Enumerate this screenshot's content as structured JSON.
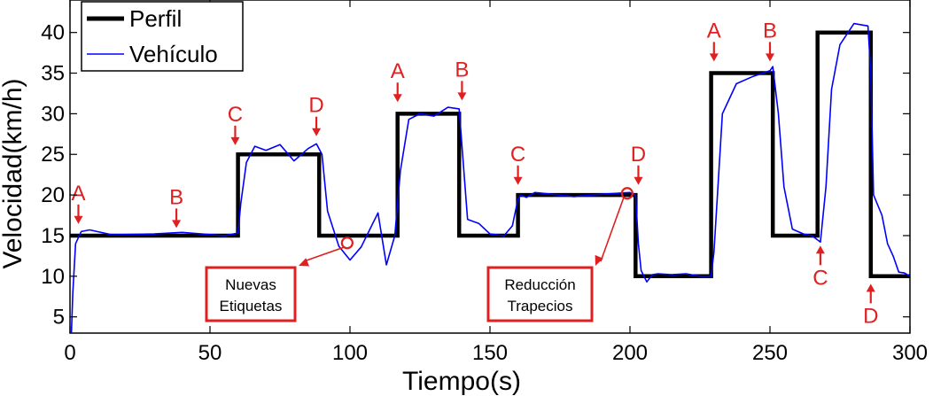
{
  "chart_data": {
    "type": "line",
    "xlabel": "Tiempo(s)",
    "ylabel": "Velocidad(km/h)",
    "xlim": [
      0,
      300
    ],
    "ylim": [
      3,
      44
    ],
    "xticks": [
      0,
      50,
      100,
      150,
      200,
      250,
      300
    ],
    "yticks": [
      5,
      10,
      15,
      20,
      25,
      30,
      35,
      40
    ],
    "grid": false,
    "legend_position": "top-left",
    "series": [
      {
        "name": "Perfil",
        "color": "#000000",
        "style": "step",
        "x": [
          0,
          60,
          60,
          89,
          89,
          117,
          117,
          139,
          139,
          160,
          160,
          202,
          202,
          229,
          229,
          251,
          251,
          267,
          267,
          286,
          286,
          300
        ],
        "y": [
          15,
          15,
          25,
          25,
          15,
          15,
          30,
          30,
          15,
          15,
          20,
          20,
          10,
          10,
          35,
          35,
          15,
          15,
          40,
          40,
          10,
          10
        ]
      },
      {
        "name": "Vehículo",
        "color": "#0000ff",
        "style": "line",
        "x": [
          0.5,
          1,
          2,
          4,
          7,
          15,
          30,
          40,
          55,
          60,
          61,
          63,
          66,
          70,
          75,
          80,
          85,
          88,
          90,
          92,
          96,
          100,
          104,
          110,
          113,
          116,
          118,
          121,
          125,
          130,
          135,
          139,
          140,
          142,
          146,
          150,
          155,
          158,
          160,
          161,
          163,
          166,
          172,
          180,
          190,
          200,
          202,
          203,
          204,
          206,
          208,
          210,
          215,
          220,
          225,
          229,
          230,
          233,
          238,
          244,
          250,
          251,
          253,
          255,
          258,
          262,
          265,
          268,
          270,
          272,
          275,
          280,
          285,
          286,
          287,
          290,
          292,
          294,
          296,
          298,
          300
        ],
        "y": [
          3,
          8,
          14,
          15.5,
          15.7,
          15.1,
          15.2,
          15.4,
          15,
          15.3,
          19,
          24,
          26,
          25.5,
          26.2,
          24.2,
          25.7,
          26.3,
          25,
          18,
          13.7,
          12,
          13.6,
          17.8,
          11.4,
          15,
          23,
          29.3,
          30,
          29.7,
          30.8,
          30.6,
          26,
          17,
          16.5,
          15.2,
          15,
          16.2,
          19.5,
          20,
          19.7,
          20.3,
          20.1,
          19.8,
          20.1,
          20.3,
          20,
          14,
          10.7,
          9.3,
          10.2,
          10.3,
          10.2,
          10.3,
          10,
          10,
          13,
          30,
          33.7,
          34.6,
          35.3,
          35.8,
          30,
          21,
          15.8,
          15.2,
          15,
          14.2,
          21,
          33,
          38.5,
          41.1,
          40.8,
          35,
          20,
          17.5,
          14,
          12.5,
          10.5,
          10.4,
          10
        ]
      }
    ],
    "markers": [
      {
        "label": "A",
        "x": 3,
        "y": 16,
        "dir": "down"
      },
      {
        "label": "B",
        "x": 38,
        "y": 15.5,
        "dir": "down"
      },
      {
        "label": "C",
        "x": 59,
        "y": 25.7,
        "dir": "down"
      },
      {
        "label": "D",
        "x": 88,
        "y": 26.8,
        "dir": "down"
      },
      {
        "label": "A",
        "x": 117,
        "y": 31,
        "dir": "down"
      },
      {
        "label": "B",
        "x": 140,
        "y": 31.2,
        "dir": "down"
      },
      {
        "label": "C",
        "x": 160,
        "y": 20.8,
        "dir": "down"
      },
      {
        "label": "D",
        "x": 203,
        "y": 20.8,
        "dir": "down"
      },
      {
        "label": "A",
        "x": 230,
        "y": 36,
        "dir": "down"
      },
      {
        "label": "B",
        "x": 250,
        "y": 36,
        "dir": "down"
      },
      {
        "label": "C",
        "x": 268,
        "y": 14.2,
        "dir": "up"
      },
      {
        "label": "D",
        "x": 286,
        "y": 9.5,
        "dir": "up"
      }
    ],
    "annotations": [
      {
        "lines": [
          "Nuevas",
          "Etiquetas"
        ],
        "circle": {
          "x": 99,
          "y": 14.1
        }
      },
      {
        "lines": [
          "Reducción",
          "Trapecios"
        ],
        "circle": {
          "x": 199,
          "y": 20.2
        }
      }
    ]
  }
}
